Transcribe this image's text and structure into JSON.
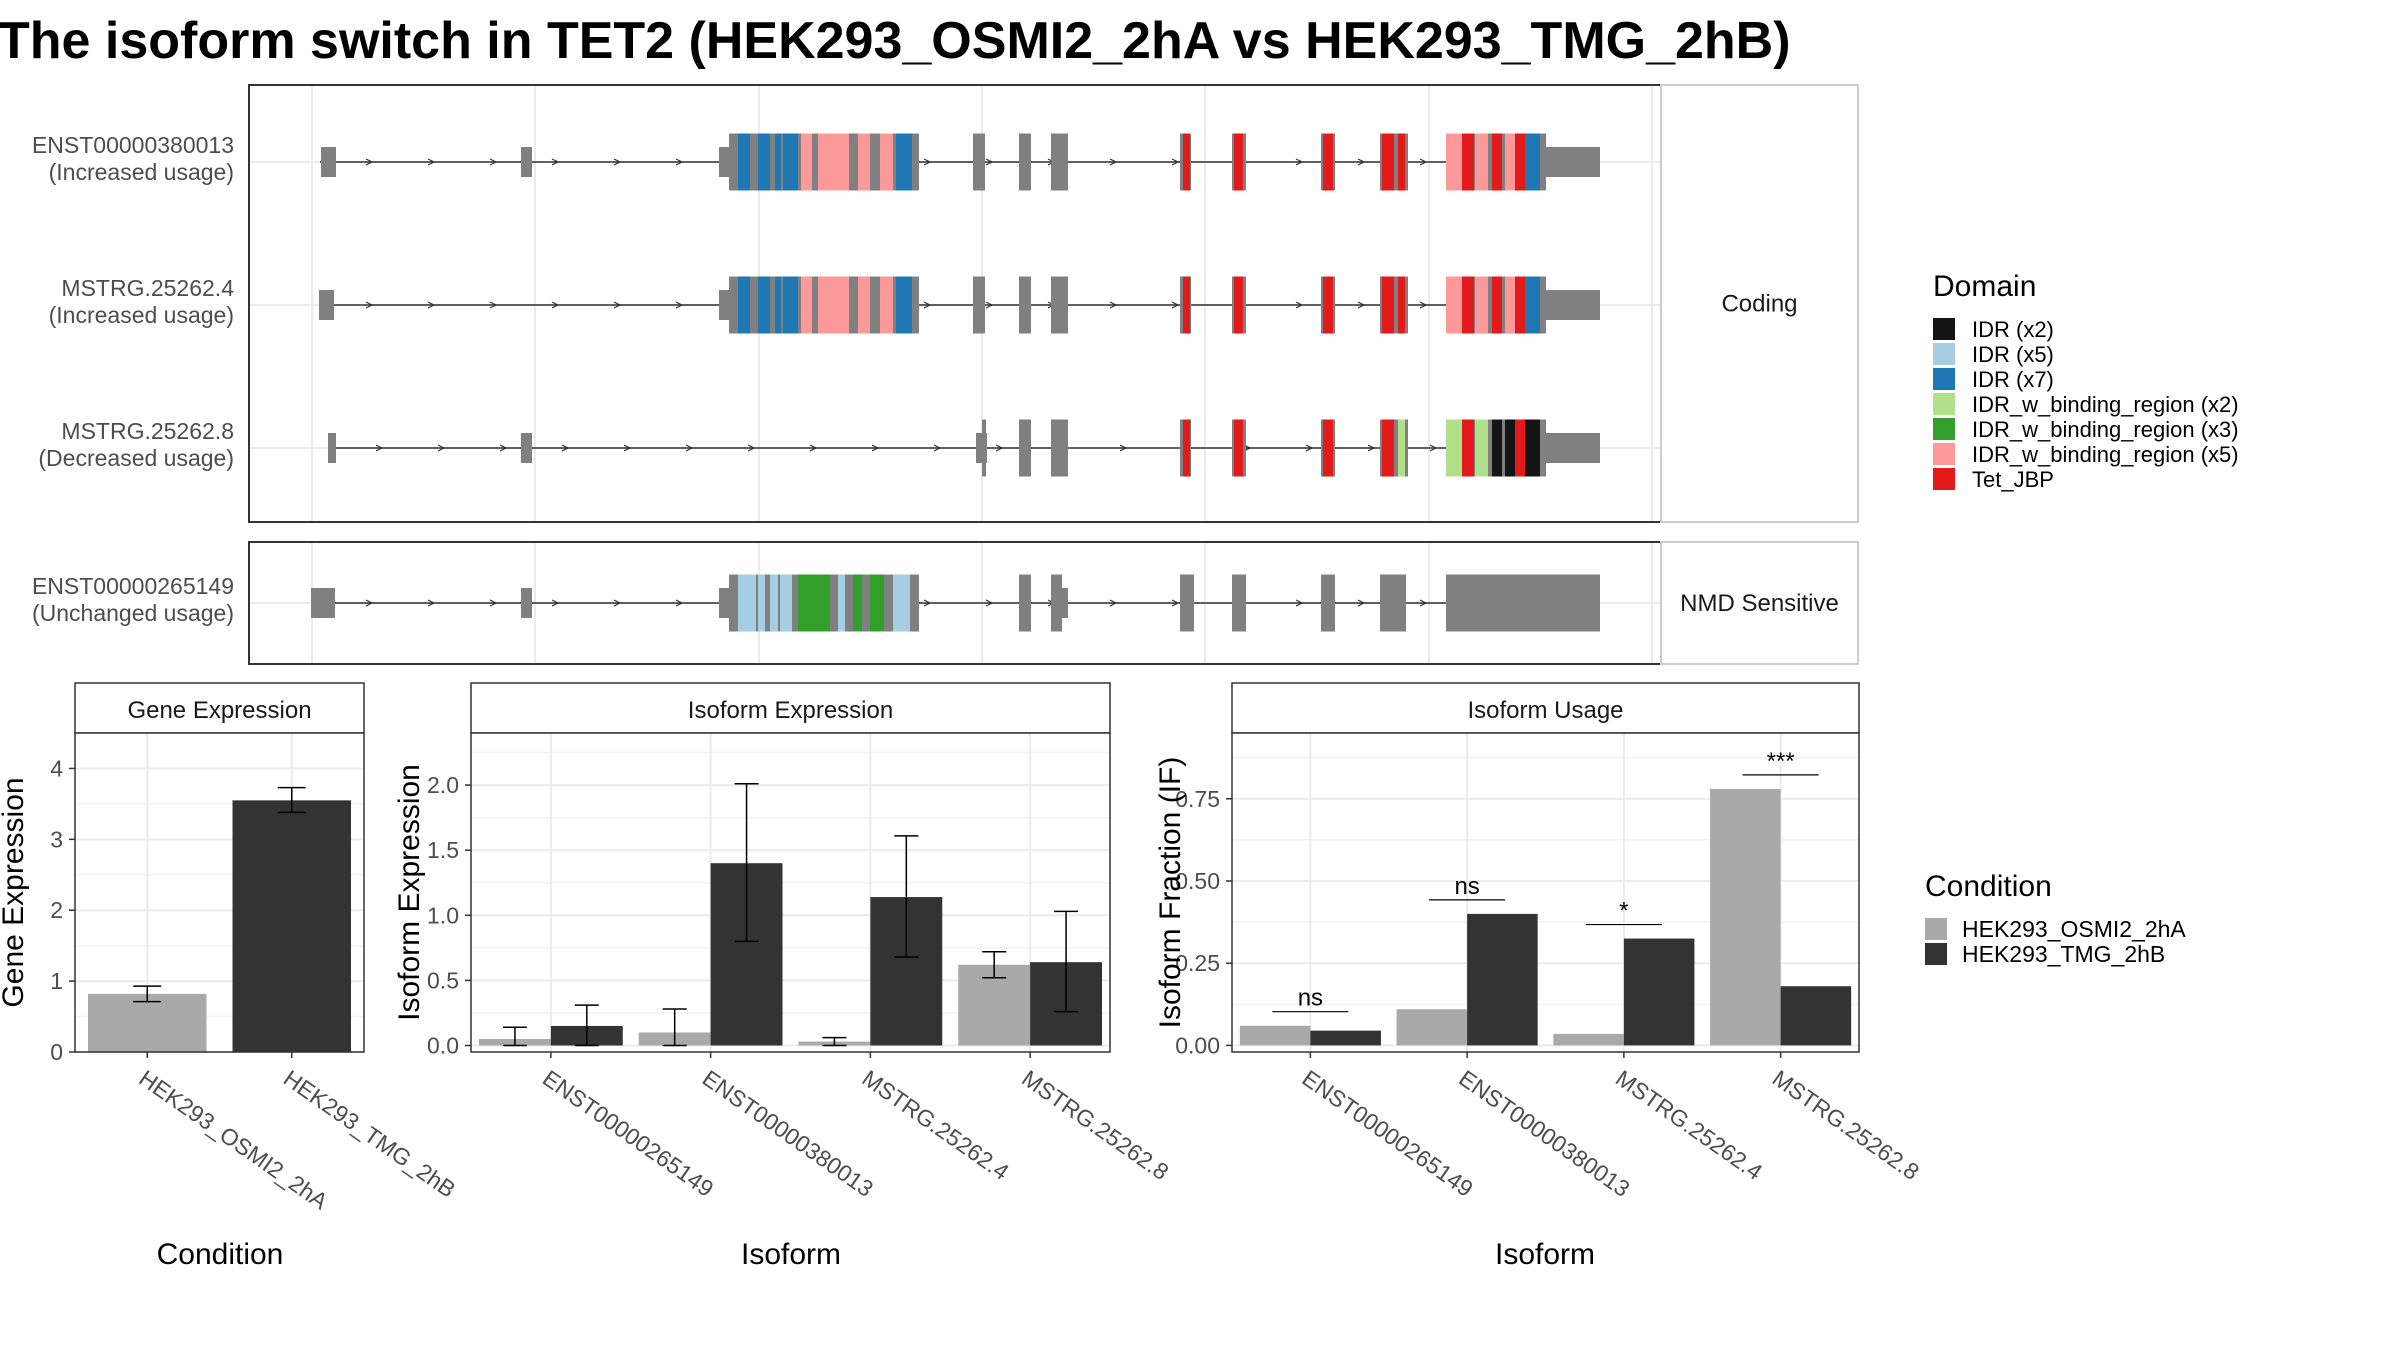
{
  "title": "The isoform switch in TET2 (HEK293_OSMI2_2hA vs HEK293_TMG_2hB)",
  "colors": {
    "domains": [
      "#141414",
      "#a6cee3",
      "#1f78b4",
      "#b2df8a",
      "#33a02c",
      "#fb9a99",
      "#e31a1c"
    ],
    "condition": [
      "#a9a9a9",
      "#333333"
    ],
    "exon": "#808080",
    "gridline": "#ebebeb",
    "panel_border": "#333333",
    "strip_bg": "#ffffff"
  },
  "structure": {
    "facets": [
      {
        "label": "Coding",
        "rows": [
          {
            "isoform": "ENST00000380013",
            "usage": "(Increased usage)"
          },
          {
            "isoform": "MSTRG.25262.4",
            "usage": "(Increased usage)"
          },
          {
            "isoform": "MSTRG.25262.8",
            "usage": "(Decreased usage)"
          }
        ]
      },
      {
        "label": "NMD Sensitive",
        "rows": [
          {
            "isoform": "ENST00000265149",
            "usage": "(Unchanged usage)"
          }
        ]
      }
    ],
    "legend": {
      "title": "Domain",
      "items": [
        "IDR (x2)",
        "IDR (x5)",
        "IDR (x7)",
        "IDR_w_binding_region (x2)",
        "IDR_w_binding_region (x3)",
        "IDR_w_binding_region (x5)",
        "Tet_JBP"
      ]
    }
  },
  "chart_data": [
    {
      "type": "bar",
      "panel": "Gene Expression",
      "xlabel": "Condition",
      "ylabel": "Gene Expression",
      "categories": [
        "HEK293_OSMI2_2hA",
        "HEK293_TMG_2hB"
      ],
      "values": [
        0.82,
        3.55
      ],
      "error": [
        [
          0.71,
          0.93
        ],
        [
          3.38,
          3.73
        ]
      ],
      "ylim": [
        0,
        4.5
      ],
      "yticks": [
        0,
        1,
        2,
        3,
        4
      ],
      "ytick_labels": [
        "0",
        "1",
        "2",
        "3",
        "4"
      ],
      "grid": true
    },
    {
      "type": "bar",
      "panel": "Isoform Expression",
      "xlabel": "Isoform",
      "ylabel": "Isoform Expression",
      "categories": [
        "ENST00000265149",
        "ENST00000380013",
        "MSTRG.25262.4",
        "MSTRG.25262.8"
      ],
      "series": [
        {
          "name": "HEK293_OSMI2_2hA",
          "values": [
            0.05,
            0.1,
            0.03,
            0.62
          ],
          "error": [
            [
              0.0,
              0.14
            ],
            [
              0.0,
              0.28
            ],
            [
              0.0,
              0.06
            ],
            [
              0.52,
              0.72
            ]
          ]
        },
        {
          "name": "HEK293_TMG_2hB",
          "values": [
            0.15,
            1.4,
            1.14,
            0.64
          ],
          "error": [
            [
              0.0,
              0.31
            ],
            [
              0.8,
              2.01
            ],
            [
              0.68,
              1.61
            ],
            [
              0.26,
              1.03
            ]
          ]
        }
      ],
      "ylim": [
        -0.05,
        2.4
      ],
      "yticks": [
        0,
        0.5,
        1.0,
        1.5,
        2.0
      ],
      "ytick_labels": [
        "0.0",
        "0.5",
        "1.0",
        "1.5",
        "2.0"
      ],
      "grid": true
    },
    {
      "type": "bar",
      "panel": "Isoform Usage",
      "xlabel": "Isoform",
      "ylabel": "Isoform Fraction (IF)",
      "categories": [
        "ENST00000265149",
        "ENST00000380013",
        "MSTRG.25262.4",
        "MSTRG.25262.8"
      ],
      "series": [
        {
          "name": "HEK293_OSMI2_2hA",
          "values": [
            0.06,
            0.11,
            0.035,
            0.78
          ]
        },
        {
          "name": "HEK293_TMG_2hB",
          "values": [
            0.045,
            0.4,
            0.325,
            0.18
          ]
        }
      ],
      "significance": [
        "ns",
        "ns",
        "*",
        "***"
      ],
      "ylim": [
        -0.02,
        0.95
      ],
      "yticks": [
        0,
        0.25,
        0.5,
        0.75
      ],
      "ytick_labels": [
        "0.00",
        "0.25",
        "0.50",
        "0.75"
      ],
      "grid": true
    }
  ],
  "condition_legend": {
    "title": "Condition",
    "items": [
      "HEK293_OSMI2_2hA",
      "HEK293_TMG_2hB"
    ]
  }
}
